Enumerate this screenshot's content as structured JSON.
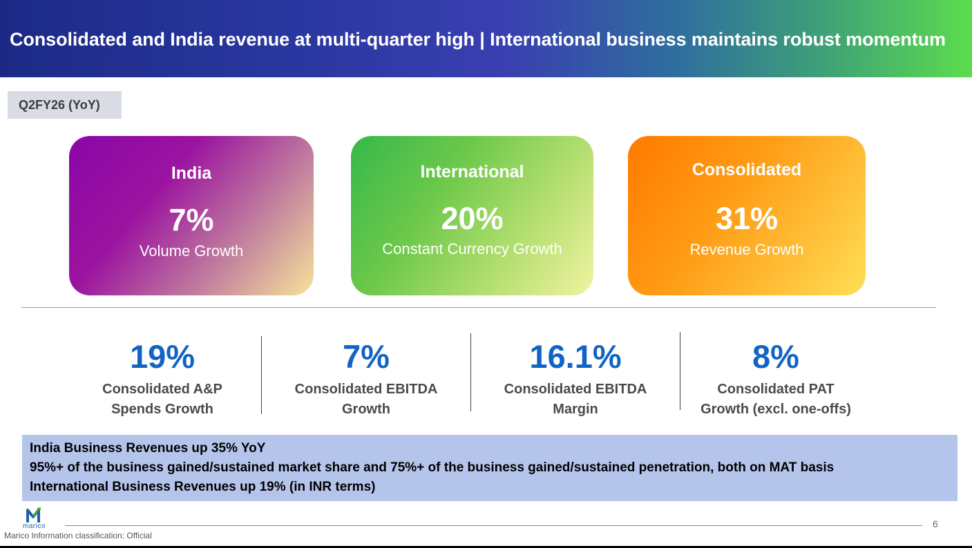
{
  "header": {
    "title": "Consolidated and India revenue at multi-quarter high | International business maintains robust momentum"
  },
  "period_tag": "Q2FY26 (YoY)",
  "kpi_cards": [
    {
      "region": "India",
      "value": "7%",
      "label": "Volume Growth"
    },
    {
      "region": "International",
      "value": "20%",
      "label": "Constant Currency Growth"
    },
    {
      "region": "Consolidated",
      "value": "31%",
      "label": "Revenue Growth"
    }
  ],
  "metrics": [
    {
      "value": "19%",
      "label_line1": "Consolidated A&P",
      "label_line2": "Spends Growth"
    },
    {
      "value": "7%",
      "label_line1": "Consolidated EBITDA",
      "label_line2": "Growth"
    },
    {
      "value": "16.1%",
      "label_line1": "Consolidated EBITDA",
      "label_line2": "Margin"
    },
    {
      "value": "8%",
      "label_line1": "Consolidated PAT",
      "label_line2": "Growth (excl. one-offs)"
    }
  ],
  "highlights": [
    "India Business Revenues up 35% YoY",
    "95%+ of the business gained/sustained market share and 75%+ of the business gained/sustained penetration, both on MAT basis",
    "International Business Revenues up 19% (in INR terms)"
  ],
  "footer": {
    "logo_text": "marico",
    "page_number": "6",
    "classification": "Marico Information classification: Official"
  },
  "colors": {
    "metric_blue": "#1264c4",
    "highlight_bg": "#b4c4ea",
    "logo_blue": "#1e5fa8",
    "logo_green": "#3aa935"
  }
}
